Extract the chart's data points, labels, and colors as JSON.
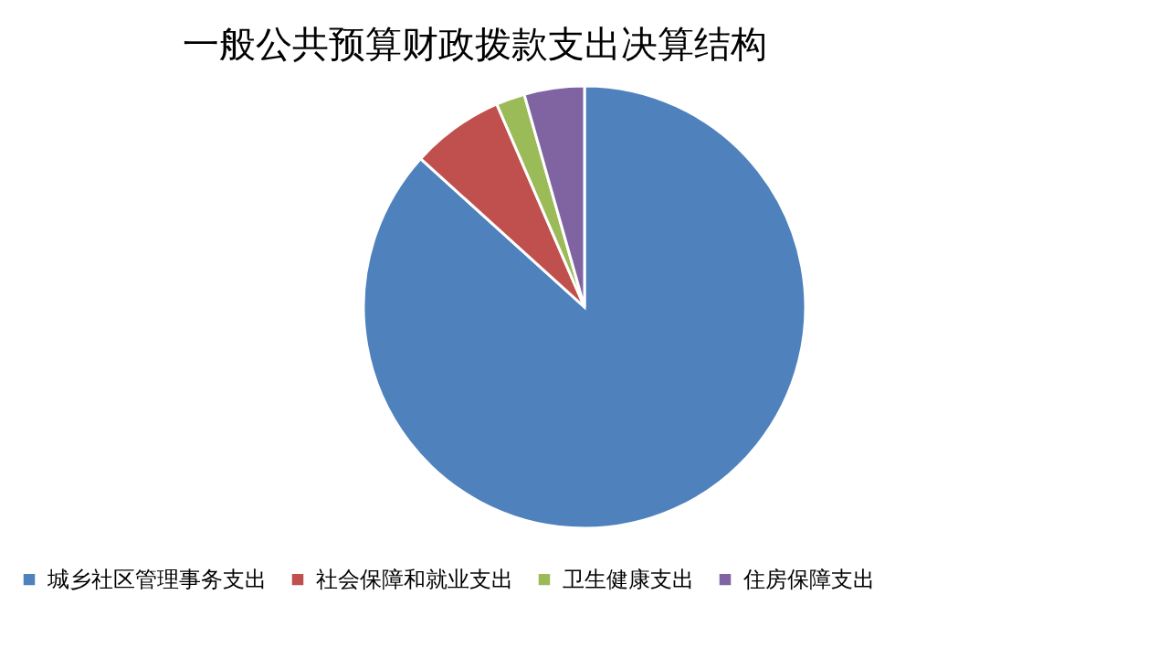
{
  "chart_data": {
    "type": "pie",
    "title": "一般公共预算财政拨款支出决算结构",
    "categories": [
      "城乡社区管理事务支出",
      "社会保障和就业支出",
      "卫生健康支出",
      "住房保障支出"
    ],
    "values": [
      86.7,
      6.8,
      2.1,
      4.4
    ],
    "colors": [
      "#4f81bd",
      "#c0504d",
      "#9bbb59",
      "#8064a2"
    ],
    "legend": "bottom"
  }
}
